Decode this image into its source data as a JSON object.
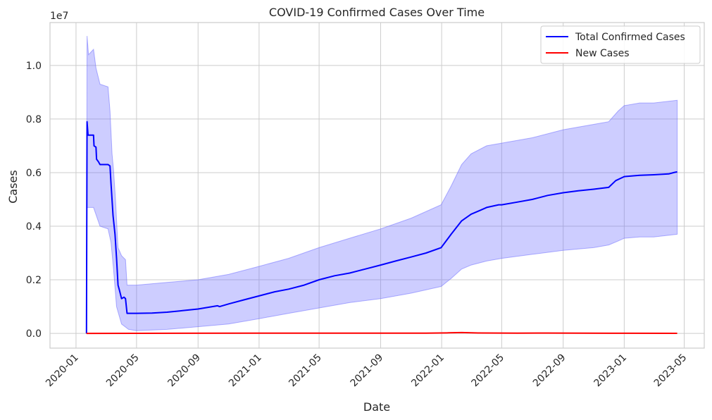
{
  "chart_data": {
    "type": "line",
    "title": "COVID-19 Confirmed Cases Over Time",
    "xlabel": "Date",
    "ylabel": "Cases",
    "y_offset_text": "1e7",
    "y_scale_factor": 10000000,
    "ylim": [
      -0.055,
      1.16
    ],
    "yticks": [
      0.0,
      0.2,
      0.4,
      0.6,
      0.8,
      1.0
    ],
    "ytick_labels": [
      "0.0",
      "0.2",
      "0.4",
      "0.6",
      "0.8",
      "1.0"
    ],
    "xlim": [
      "2019-11-10",
      "2023-06-10"
    ],
    "xticks": [
      "2020-01-01",
      "2020-05-01",
      "2020-09-01",
      "2021-01-01",
      "2021-05-01",
      "2021-09-01",
      "2022-01-01",
      "2022-05-01",
      "2022-09-01",
      "2023-01-01",
      "2023-05-01"
    ],
    "xtick_labels": [
      "2020-01",
      "2020-05",
      "2020-09",
      "2021-01",
      "2021-05",
      "2021-09",
      "2022-01",
      "2022-05",
      "2022-09",
      "2023-01",
      "2023-05"
    ],
    "grid": true,
    "legend_position": "top-right",
    "series": [
      {
        "name": "Total Confirmed Cases",
        "color": "#0000ff",
        "band_color": "#6666ff",
        "points": [
          [
            "2020-01-22",
            0.0
          ],
          [
            "2020-01-23",
            0.79
          ],
          [
            "2020-01-25",
            0.74
          ],
          [
            "2020-02-05",
            0.74
          ],
          [
            "2020-02-06",
            0.7
          ],
          [
            "2020-02-10",
            0.695
          ],
          [
            "2020-02-11",
            0.65
          ],
          [
            "2020-02-15",
            0.64
          ],
          [
            "2020-02-18",
            0.63
          ],
          [
            "2020-03-05",
            0.63
          ],
          [
            "2020-03-09",
            0.625
          ],
          [
            "2020-03-11",
            0.56
          ],
          [
            "2020-03-15",
            0.44
          ],
          [
            "2020-03-19",
            0.37
          ],
          [
            "2020-03-22",
            0.28
          ],
          [
            "2020-03-25",
            0.18
          ],
          [
            "2020-03-28",
            0.16
          ],
          [
            "2020-04-01",
            0.13
          ],
          [
            "2020-04-06",
            0.135
          ],
          [
            "2020-04-09",
            0.13
          ],
          [
            "2020-04-12",
            0.075
          ],
          [
            "2020-05-01",
            0.075
          ],
          [
            "2020-06-01",
            0.076
          ],
          [
            "2020-07-01",
            0.079
          ],
          [
            "2020-08-01",
            0.085
          ],
          [
            "2020-09-01",
            0.091
          ],
          [
            "2020-10-10",
            0.103
          ],
          [
            "2020-10-14",
            0.1
          ],
          [
            "2020-11-01",
            0.11
          ],
          [
            "2020-12-01",
            0.125
          ],
          [
            "2021-01-01",
            0.14
          ],
          [
            "2021-02-01",
            0.155
          ],
          [
            "2021-03-01",
            0.165
          ],
          [
            "2021-04-01",
            0.18
          ],
          [
            "2021-05-01",
            0.2
          ],
          [
            "2021-06-01",
            0.215
          ],
          [
            "2021-07-01",
            0.225
          ],
          [
            "2021-08-01",
            0.24
          ],
          [
            "2021-09-01",
            0.255
          ],
          [
            "2021-10-01",
            0.27
          ],
          [
            "2021-11-01",
            0.285
          ],
          [
            "2021-12-01",
            0.3
          ],
          [
            "2021-12-31",
            0.32
          ],
          [
            "2022-01-20",
            0.37
          ],
          [
            "2022-02-10",
            0.42
          ],
          [
            "2022-03-01",
            0.445
          ],
          [
            "2022-03-20",
            0.46
          ],
          [
            "2022-04-01",
            0.47
          ],
          [
            "2022-04-25",
            0.48
          ],
          [
            "2022-05-01",
            0.48
          ],
          [
            "2022-06-01",
            0.49
          ],
          [
            "2022-07-01",
            0.5
          ],
          [
            "2022-08-01",
            0.515
          ],
          [
            "2022-09-01",
            0.525
          ],
          [
            "2022-10-01",
            0.532
          ],
          [
            "2022-11-01",
            0.538
          ],
          [
            "2022-12-01",
            0.545
          ],
          [
            "2022-12-15",
            0.57
          ],
          [
            "2023-01-01",
            0.585
          ],
          [
            "2023-02-01",
            0.59
          ],
          [
            "2023-03-01",
            0.592
          ],
          [
            "2023-03-31",
            0.595
          ],
          [
            "2023-04-10",
            0.6
          ],
          [
            "2023-04-17",
            0.603
          ]
        ],
        "band_upper": [
          [
            "2020-01-22",
            0.0
          ],
          [
            "2020-01-23",
            1.11
          ],
          [
            "2020-01-26",
            1.04
          ],
          [
            "2020-02-05",
            1.06
          ],
          [
            "2020-02-10",
            0.99
          ],
          [
            "2020-02-18",
            0.93
          ],
          [
            "2020-03-05",
            0.92
          ],
          [
            "2020-03-09",
            0.83
          ],
          [
            "2020-03-13",
            0.67
          ],
          [
            "2020-03-16",
            0.61
          ],
          [
            "2020-03-20",
            0.5
          ],
          [
            "2020-03-25",
            0.32
          ],
          [
            "2020-04-01",
            0.29
          ],
          [
            "2020-04-09",
            0.275
          ],
          [
            "2020-04-12",
            0.18
          ],
          [
            "2020-05-01",
            0.18
          ],
          [
            "2020-07-01",
            0.19
          ],
          [
            "2020-09-01",
            0.2
          ],
          [
            "2020-11-01",
            0.22
          ],
          [
            "2021-01-01",
            0.25
          ],
          [
            "2021-03-01",
            0.28
          ],
          [
            "2021-05-01",
            0.32
          ],
          [
            "2021-07-01",
            0.355
          ],
          [
            "2021-09-01",
            0.39
          ],
          [
            "2021-11-01",
            0.43
          ],
          [
            "2021-12-31",
            0.48
          ],
          [
            "2022-01-20",
            0.55
          ],
          [
            "2022-02-10",
            0.63
          ],
          [
            "2022-03-01",
            0.67
          ],
          [
            "2022-04-01",
            0.7
          ],
          [
            "2022-05-01",
            0.71
          ],
          [
            "2022-07-01",
            0.73
          ],
          [
            "2022-09-01",
            0.76
          ],
          [
            "2022-11-01",
            0.78
          ],
          [
            "2022-12-01",
            0.79
          ],
          [
            "2022-12-20",
            0.83
          ],
          [
            "2023-01-01",
            0.85
          ],
          [
            "2023-02-01",
            0.86
          ],
          [
            "2023-03-01",
            0.86
          ],
          [
            "2023-04-17",
            0.87
          ]
        ],
        "band_lower": [
          [
            "2020-01-22",
            0.0
          ],
          [
            "2020-01-23",
            0.47
          ],
          [
            "2020-02-05",
            0.47
          ],
          [
            "2020-02-18",
            0.4
          ],
          [
            "2020-03-05",
            0.39
          ],
          [
            "2020-03-11",
            0.34
          ],
          [
            "2020-03-16",
            0.24
          ],
          [
            "2020-03-22",
            0.1
          ],
          [
            "2020-04-01",
            0.035
          ],
          [
            "2020-04-15",
            0.015
          ],
          [
            "2020-05-01",
            0.01
          ],
          [
            "2020-07-01",
            0.015
          ],
          [
            "2020-09-01",
            0.025
          ],
          [
            "2020-11-01",
            0.035
          ],
          [
            "2021-01-01",
            0.055
          ],
          [
            "2021-03-01",
            0.075
          ],
          [
            "2021-05-01",
            0.095
          ],
          [
            "2021-07-01",
            0.115
          ],
          [
            "2021-09-01",
            0.13
          ],
          [
            "2021-11-01",
            0.15
          ],
          [
            "2021-12-31",
            0.175
          ],
          [
            "2022-01-20",
            0.205
          ],
          [
            "2022-02-10",
            0.24
          ],
          [
            "2022-03-01",
            0.255
          ],
          [
            "2022-04-01",
            0.27
          ],
          [
            "2022-05-01",
            0.28
          ],
          [
            "2022-07-01",
            0.295
          ],
          [
            "2022-09-01",
            0.31
          ],
          [
            "2022-11-01",
            0.32
          ],
          [
            "2022-12-01",
            0.33
          ],
          [
            "2022-12-20",
            0.345
          ],
          [
            "2023-01-01",
            0.355
          ],
          [
            "2023-02-01",
            0.36
          ],
          [
            "2023-03-01",
            0.36
          ],
          [
            "2023-04-17",
            0.37
          ]
        ]
      },
      {
        "name": "New Cases",
        "color": "#ff0000",
        "points": [
          [
            "2020-01-22",
            0.0
          ],
          [
            "2021-01-01",
            0.001
          ],
          [
            "2021-12-01",
            0.001
          ],
          [
            "2022-01-15",
            0.002
          ],
          [
            "2022-02-10",
            0.003
          ],
          [
            "2022-03-15",
            0.0015
          ],
          [
            "2022-06-01",
            0.0008
          ],
          [
            "2022-08-01",
            0.0012
          ],
          [
            "2022-12-01",
            0.0006
          ],
          [
            "2023-04-17",
            0.0002
          ]
        ]
      }
    ]
  }
}
